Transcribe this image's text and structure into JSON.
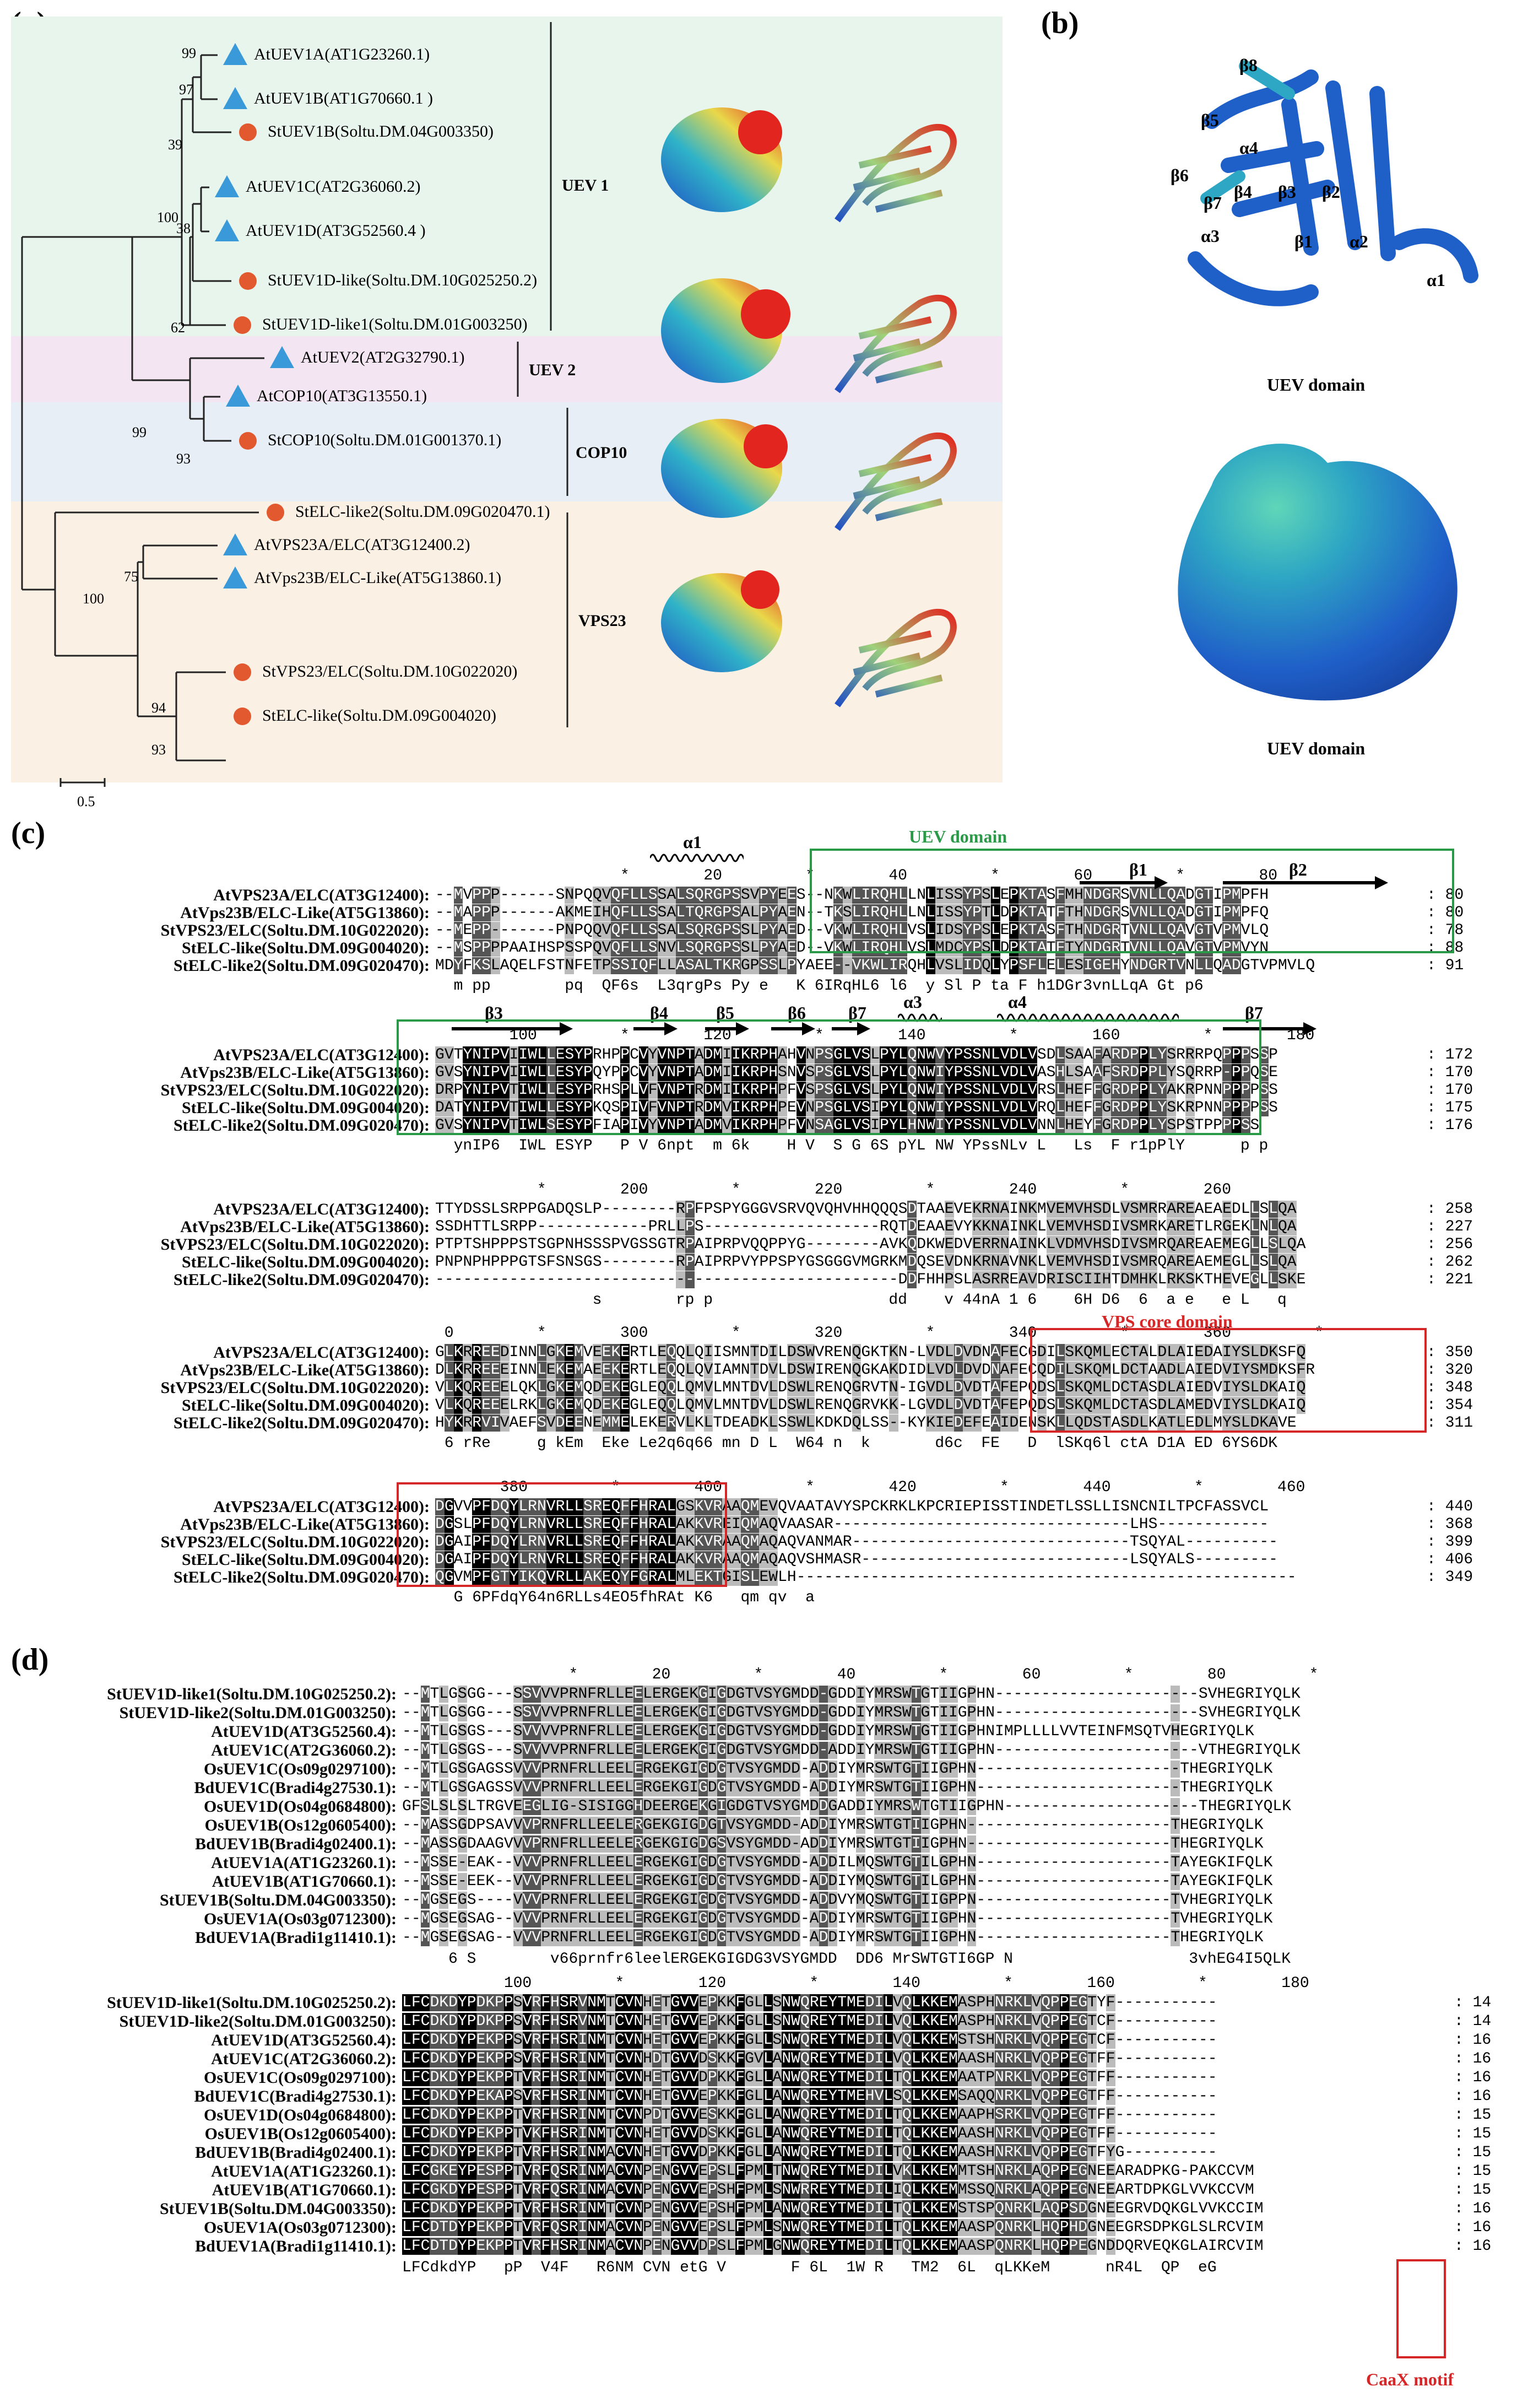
{
  "panels": {
    "a": "(a)",
    "b": "(b)",
    "c": "(c)",
    "d": "(d)"
  },
  "tree": {
    "leaves": [
      {
        "label": "AtUEV1A(AT1G23260.1)",
        "marker": "triangle"
      },
      {
        "label": "AtUEV1B(AT1G70660.1 )",
        "marker": "triangle"
      },
      {
        "label": "StUEV1B(Soltu.DM.04G003350)",
        "marker": "circle"
      },
      {
        "label": "AtUEV1C(AT2G36060.2)",
        "marker": "triangle"
      },
      {
        "label": "AtUEV1D(AT3G52560.4 )",
        "marker": "triangle"
      },
      {
        "label": "StUEV1D-like(Soltu.DM.10G025250.2)",
        "marker": "circle"
      },
      {
        "label": "StUEV1D-like1(Soltu.DM.01G003250)",
        "marker": "circle"
      },
      {
        "label": "AtUEV2(AT2G32790.1)",
        "marker": "triangle"
      },
      {
        "label": "AtCOP10(AT3G13550.1)",
        "marker": "triangle"
      },
      {
        "label": "StCOP10(Soltu.DM.01G001370.1)",
        "marker": "circle"
      },
      {
        "label": "StELC-like2(Soltu.DM.09G020470.1)",
        "marker": "circle"
      },
      {
        "label": "AtVPS23A/ELC(AT3G12400.2)",
        "marker": "triangle"
      },
      {
        "label": "AtVps23B/ELC-Like(AT5G13860.1)",
        "marker": "triangle"
      },
      {
        "label": "StVPS23/ELC(Soltu.DM.10G022020)",
        "marker": "circle"
      },
      {
        "label": "StELC-like(Soltu.DM.09G004020)",
        "marker": "circle"
      }
    ],
    "bootstrap": [
      "99",
      "97",
      "39",
      "100",
      "38",
      "62",
      "99",
      "93",
      "75",
      "100",
      "94",
      "93"
    ],
    "clades": [
      "UEV 1",
      "UEV 2",
      "COP10",
      "VPS23"
    ],
    "scale": "0.5",
    "colors": {
      "triangle": "#3a9ad9",
      "circle": "#e2592f",
      "uev1_bg": "#e8f5ec",
      "uev2_bg": "#f3e6f2",
      "cop10_bg": "#e7eef6",
      "vps23_bg": "#fbf0e4"
    }
  },
  "structure": {
    "labels": [
      "β8",
      "β5",
      "α4",
      "β6",
      "β4",
      "β3",
      "β2",
      "β7",
      "β1",
      "α2",
      "α3",
      "α1"
    ],
    "caption1": "UEV domain",
    "caption2": "UEV domain"
  },
  "alignment_c": {
    "names": [
      "AtVPS23A/ELC(AT3G12400):",
      "AtVps23B/ELC-Like(AT5G13860):",
      "StVPS23/ELC(Soltu.DM.10G022020):",
      "StELC-like(Soltu.DM.09G004020):",
      "StELC-like2(Soltu.DM.09G020470):"
    ],
    "blocks": [
      {
        "ruler": "                    *        20         *        40         *        60         *        80",
        "rows": [
          "--MVPPP------SNPQQVQFLLSSALSQRGPSSVPYEES--NKWLIRQHLLNLISSYPSLEPKTASFMHNDGRSVNLLQADGTIPMPFH",
          "--MAPPP------AKMEIHQFLLSSALTQRGPSALPYAEN--TKSLIRQHLLNLISSYPTLDPKTATFTHNDGRSVNLLQADGTIPMPFQ",
          "--MEPP-------PNPQQVQFLLSSALSQRGPSSLPYAED--VKWLIRQHLVSLIDSYPSLEPKTASFTHNDGRTVNLLQAVGTVPMVLQ",
          "--MSPPPPAAIHSPSSPQVQFLLSNVLSQRGPSSLPYAED--VKWLIRQHLVSLMDCYPSLDPKTATFTYNDGRTVNLLQAVGTVPMVYN",
          "MDYFKSLAQELFSTNFETPSSIQFLLASALTKRGPSSLPYAEE--VKWLIRQHLVSLIDQLYPSFLELESIGEHYNDGRTVNLLQADGTVPMVLQ"
        ],
        "ends": [
          "80",
          "80",
          "78",
          "88",
          "91"
        ],
        "consensus": "  m pp        pq  QF6s  L3qrgPs Py e   K 6IRqHL6 l6  y Sl P ta F h1DGr3vnLLqA Gt p6"
      },
      {
        "ruler": "        100         *        120         *        140         *        160         *        180",
        "rows": [
          "GVTYNIPVIIWLLESYPRHPPCVYVNPTADMIIKRPHAHVNPSGLVSLPYLQNWVYPSSNLVDLVSDLSAAFARDPPLYSRRRPQPPPSSP",
          "GVSYNIPVIIWLLESYPQYPPCVYVNPTADMIIKRPHSNVSPSGLVSLPYLQNWIYPSSNLVDLVASHLSAAFSRDPPLYSQRRP-PPQSE",
          "DRPYNIPVTIWLLESYPRHSPLVFVNPTRDMIIKRPHPFVSPSGLVSLPYLQNWIYPSSNLVDLVRSLHEFFGRDPPLYAKRPNNPPPPSS",
          "DATYNIPVTIWLLESYPKQSPIVFVNPTRDMVIKRPHPEVNPSGLVSIPYLQNWIYPSSNLVDLVRQLHEFFGRDPPLYSKRPNNPPPPSS",
          "GVSYNIPVTIWLSESYPFIAPIVYVNPTADMVIKRPHPFVNSAGLVSIPYLHNWIYPSSNLVDLVNNLHEYFGRDPPLYSPSTPPPPSS"
        ],
        "ends": [
          "172",
          "170",
          "170",
          "175",
          "176"
        ],
        "consensus": "  ynIP6  IWL ESYP   P V 6npt  m 6k    H V  S G 6S pYL NW YPssNLv L   Ls  F r1pPlY      p p"
      },
      {
        "ruler": "           *        200         *        220         *        240         *        260",
        "rows": [
          "TTYDSSLSRPPGADQSLP--------RPFPSPYGGGVSRVQVQHVHHQQQSDTAAEVEKRNAINKMVEMVHSDLVSMRRAREAEAEDLLSLQA",
          "SSDHTTLSRPP------------PRLLPS-------------------RQTDEAAEVYKKNAINKLVEMVHSDIVSMRKARETLRGEKLNLQA",
          "PTPTSHPPPSTSGPNHSSSPVGSSGTRPAIPRPVQQPPYG--------AVKQDKWEDVERRNAINKLVDMVHSDIVSMRQAREAEMEGLLSLQA",
          "PNPNPHPPPGTSFSNSGS--------RPAIPRPVYPPSPYGSGGGVMGRKMDQSEVDNKRNAVNKLVEMVHSDIVSMRQAREAEMEGLLSLQA",
          "--------------------------------------------------DDFHHPSLASRREAVDRISCIIHTDMHKLRKSKTHEVEGLLSKE"
        ],
        "ends": [
          "258",
          "227",
          "256",
          "262",
          "221"
        ],
        "consensus": "                 s        rp p                   dd    v 44nA 1 6    6H D6  6  a e   e L   q"
      },
      {
        "ruler": " 0         *        300         *        320         *        340         *        360         *",
        "rows": [
          "GLKRREEDINNLGKEMVEEKERTLEQQLQIISMNTDILDSWVRENQGKTKN-LVDLDVDNAFECGDILSKQMLECTALDLAIEDAIYSLDKSFQ",
          "DLKRREEEINNLEKEMAEEKERTLEQQLQVIAMNTDVLDSWIRENQGKAKDIDLVDLDVDNAFECQDILSKQMLDCTAADLAIEDVIYSMDKSFR",
          "VLKQREEELQKLGKEMQDEKEGLEQQLQMVLMNTDVLDSWLRENQGRVTN-IGVDLDVDTAFEPQDSLSKQMLDCTASDLAIEDVIYSLDKAIQ",
          "VLKQREEELRKLGKEMQDEKEGLEQQLQMVLMNTDVLDSWLRENQGRVKK-LGVDLDVDTAFEPQDSLSKQMLDCTASDLAMEDVIYSLDKAIQ",
          "HYKRRVIVAEFSVDEENEMMELEKERVLKLTDEADKLSSWLKDKDQLSS--KYKIEDEFEAIDENSKLLQDSTASDLKATLEDLMYSLDKAVE"
        ],
        "ends": [
          "350",
          "320",
          "348",
          "354",
          "311"
        ],
        "consensus": " 6 rRe     g kEm  Eke Le2q6q66 mn D L  W64 n  k       d6c  FE   D  lSKq6l ctA D1A ED 6YS6DK"
      },
      {
        "ruler": "       380         *        400         *        420         *        440         *        460",
        "rows": [
          "DGVVPFDQYLRNVRLLSREQFFHRALGSKVRAAQMEVQVAATAVYSPCKRKLKPCRIEPISSTINDETLSSLLISNCNILTPCFASSVCL",
          "DGSLPFDQYLRNVRLLSREQFFHRALAKKVREIQMAQVAASAR--------------------------------LHS------------",
          "DGAIPFDQYLRNVRLLSREQFFHRALAKKVRAAQMAQAQVANMAR------------------------------TSQYAL----------",
          "DGAIPFDQYLRNVRLLSREQFFHRALAKKVRAAQMAQAQVSHMASR-----------------------------LSQYALS---------",
          "QGVMPFGTYIKQVRLLAKEQYFGRALMLEKTGISLEWLH------------------------------------------------------"
        ],
        "ends": [
          "440",
          "368",
          "399",
          "406",
          "349"
        ],
        "consensus": "  G 6PFdqY64n6RLLs4EO5fhRAt K6   qm qv  a"
      }
    ],
    "sec_struct": [
      "α1",
      "β1",
      "β2",
      "β3",
      "β4",
      "β5",
      "β6",
      "β7",
      "α3",
      "α4",
      "β7"
    ],
    "uev_domain_label": "UEV domain",
    "vps_core_label": "VPS core domain",
    "uev_color": "#2a9a49",
    "vps_color": "#d62728"
  },
  "alignment_d": {
    "names": [
      "StUEV1D-like1(Soltu.DM.10G025250.2):",
      "StUEV1D-like2(Soltu.DM.01G003250):",
      "AtUEV1D(AT3G52560.4):",
      "AtUEV1C(AT2G36060.2):",
      "OsUEV1C(Os09g0297100):",
      "BdUEV1C(Bradi4g27530.1):",
      "OsUEV1D(Os04g0684800):",
      "OsUEV1B(Os12g0605400):",
      "BdUEV1B(Bradi4g02400.1):",
      "AtUEV1A(AT1G23260.1):",
      "AtUEV1B(AT1G70660.1):",
      "StUEV1B(Soltu.DM.04G003350):",
      "OsUEV1A(Os03g0712300):",
      "BdUEV1A(Bradi1g11410.1):"
    ],
    "block1": {
      "ruler": "                  *        20         *        40         *        60         *        80         *",
      "rows": [
        "--MTLGSGG---SSVVVPRNFRLLEELERGEKGIGDGTVSYGMDD-GDDIYMRSWTGTIIGPHN----------------------SVHEGRIYQLK",
        "--MTLGSGG---SSVVVPRNFRLLEELERGEKGIGDGTVSYGMDD-GDDIYMRSWTGTIIGPHN----------------------SVHEGRIYQLK",
        "--MTLGSGS---SVVVVPRNFRLLEELERGEKGIGDGTVSYGMDD-GDDIYMRSWTGTIIGPHNIMPLLLLVVTEINFMSQTVHEGRIYQLK",
        "--MTLGSGS---SVVVVPRNFRLLEELERGEKGIGDGTVSYGMDD-ADDIYMRSWTGTIIGPHN----------------------VTHEGRIYQLK",
        "--MTLGSGAGSSVVVPRNFRLLEELERGEKGIGDGTVSYGMDD-ADDIYMRSWTGTIIGPHN----------------------THEGRIYQLK",
        "--MTLGSGAGSSVVVPRNFRLLEELERGEKGIGDGTVSYGMDD-ADDIYMRSWTGTIIGPHN----------------------THEGRIYQLK",
        "GFSLSLSLTRGVEEGLIG-SISIGGHDEERGEKGIGDGTVSYGMDDGADDIYMRSWTGTIIGPHN---------------------THEGRIYQLK",
        "--MASSGDPSAVVVPRNFRLLEELERGEKGIGDGTVSYGMDD-ADDIYMRSWTGTIIGPHN----------------------THEGRIYQLK",
        "--MASSGDAAGVVVPRNFRLLEELERGEKGIGDGSVSYGMDD-ADDIYMRSWTGTIIGPHN----------------------THEGRIYQLK",
        "--MSSE-EAK--VVVPRNFRLLEELERGEKGIGDGTVSYGMDD-ADDILMQSWTGTILGPHN---------------------TAYEGKIFQLK",
        "--MSSE-EEK--VVVPRNFRLLEELERGEKGIGDGTVSYGMDD-ADDIYMQSWTGTILGPHN---------------------TAYEGKIFQLK",
        "--MGSEGS----VVVPRNFRLLEELERGEKGIGDGTVSYGMDD-ADDVYMQSWTGTIIGPPN---------------------TVHEGRIYQLK",
        "--MGSEGSAG--VVVPRNFRLLEELERGEKGIGDGTVSYGMDD-ADDIYMRSWTGTIIGPHN---------------------TVHEGRIYQLK",
        "--MGSEGSAG--VVVPRNFRLLEELERGEKGIGDGTVSYGMDD-ADDIYMRSWTGTIIGPHN---------------------THEGRIYQLK"
      ],
      "consensus": "     6 S        v66prnfr6leelERGEKGIGDG3VSYGMDD  DD6 MrSWTGTI6GP N                   3vhEG4I5QLK"
    },
    "block2": {
      "ruler": "           100         *        120         *        140         *        160         *        180",
      "rows": [
        "LFCDKDYPDKPPSVRFHSRVNMTCVNHETGVVEPKKFGLLSNWQREYTMEDILVQLKKEMASPHNRKLVQPPEGTYF-----------",
        "LFCDKDYPDKPPSVRFHSRVNMTCVNHETGVVEPKKFGLLSNWQREYTMEDILVQLKKEMASPHNRKLVQPPEGTCF-----------",
        "LFCDKDYPEKPPSVRFHSRINMTCVNHETGVVEPKKFGLLSNWQREYTMEDILVQLKKEMSTSHNRKLVQPPEGTCF-----------",
        "LFCDKDYPEKPPSVRFHSRINMTCVNHDTGVVDSKKFGVLANWQREYTMEDILVQLKKEMAASHNRKLVQPPEGTFF-----------",
        "LFCDKDYPEKPPTVRFHSRINMTCVNHETGVVDPKKFGLLANWQREYTMEDILTQLKKEMAATPNRKLVQPPEGTFF-----------",
        "LFCDKDYPEKAPSVRFHSRINMTCVNHETGVVEPKKFGLLANWQREYTMEHVLSQLKKEMSAQQNRKLVQPPEGTFF-----------",
        "LFCDKDYPEKPPTVRFHSRINMTCVNPDTGVVESKKFGLLANWQREYTMEDILTQLKKEMAAPHSRKLVQPPEGTFF-----------",
        "LFCDKDYPEKPPTVKFHSRINMTCVNHETGVVDSKKFGLLANWQREYTMEDILTQLKKEMAASHNRKLVQPPEGTFF-----------",
        "LFCDKDYPEKPPTVRFHSRINMACVNHETGVVDPKKFGLLANWQREYTMEDILTQLKKEMAASHNRKLVQPPEGTFYG----------",
        "LFCGKEYPESPPTVRFQSRINMACVNPENGVVEPSLFPMLTNWQREYTMEDILVKLKKEMMTSHNRKLAQPPEGNEEARADPKG-PAKCCVM",
        "LFCGKDYPESPPTVRFQSRINMACVNPENGVVEPSHFPMLSNWRREYTMEDILIQLKKEMMSSQNRKLAQPPEGNEEARTDPKGLVVKCCVM",
        "LFCDKDYPEKPPTVRFHSRINMTCVNPENGVVEPSHFPMLANWQREYTMEDILTQLKKEMSTSPQNRKLAQPSDGNEEGRVDQKGLVVKCCIM",
        "LFCDTDYPEKPPTVRFQSRINMACVNPENGVVEPSLFPMLSNWQREYTMEDILTQLKKEMAASPQNRKLHQPHDGNEEGRSDPKGLSLRCVIM",
        "LFCDTDYPEKPPTVRFHSRINMACVNPENGVVDPSLFPMLGNWQREYTMEDILTQLKKEMAASPQNRKLHQPPEGNDDQRVEQKGLAIRCVIM"
      ],
      "ends": [
        "14",
        "14",
        "16",
        "16",
        "16",
        "16",
        "15",
        "15",
        "15",
        "15",
        "15",
        "16",
        "16",
        "16"
      ],
      "consensus": "LFCdkdYP   pP  V4F   R6NM CVN etG V       F 6L  1W R   TM2  6L  qLKKeM      nR4L  QP  eG",
      "caax_label": "CaaX motif"
    }
  }
}
